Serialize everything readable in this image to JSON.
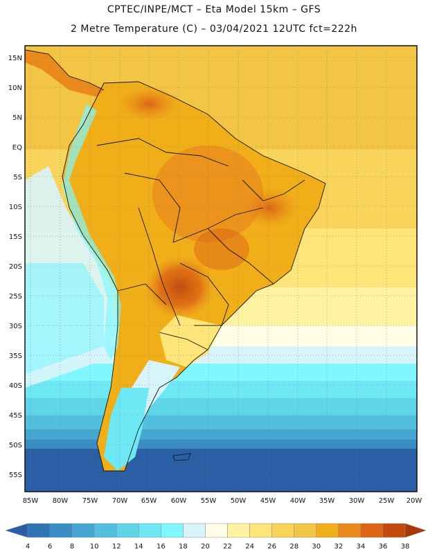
{
  "header": {
    "line1": "CPTEC/INPE/MCT –  Eta Model 15km – GFS",
    "line2": "2 Metre Temperature (C) – 03/04/2021 12UTC fct=222h"
  },
  "axes": {
    "lat_labels": [
      "15N",
      "10N",
      "5N",
      "EQ",
      "5S",
      "10S",
      "15S",
      "20S",
      "25S",
      "30S",
      "35S",
      "40S",
      "45S",
      "50S",
      "55S"
    ],
    "lon_labels": [
      "85W",
      "80W",
      "75W",
      "70W",
      "65W",
      "60W",
      "55W",
      "50W",
      "45W",
      "40W",
      "35W",
      "30W",
      "25W",
      "20W"
    ]
  },
  "colorbar": {
    "ticks": [
      "4",
      "6",
      "8",
      "10",
      "12",
      "14",
      "16",
      "18",
      "20",
      "22",
      "24",
      "26",
      "28",
      "30",
      "32",
      "34",
      "36",
      "38"
    ],
    "colors": [
      "#2b5fa5",
      "#2f74b5",
      "#3a8cc4",
      "#46a6d2",
      "#52bfdf",
      "#5fd6e8",
      "#6ee8f4",
      "#80f7ff",
      "#d8f4fb",
      "#fffde6",
      "#fff2a0",
      "#fde579",
      "#f8d55a",
      "#f2c544",
      "#f0af18",
      "#ea8a1c",
      "#dc6414",
      "#c24b0c",
      "#a83808"
    ]
  }
}
